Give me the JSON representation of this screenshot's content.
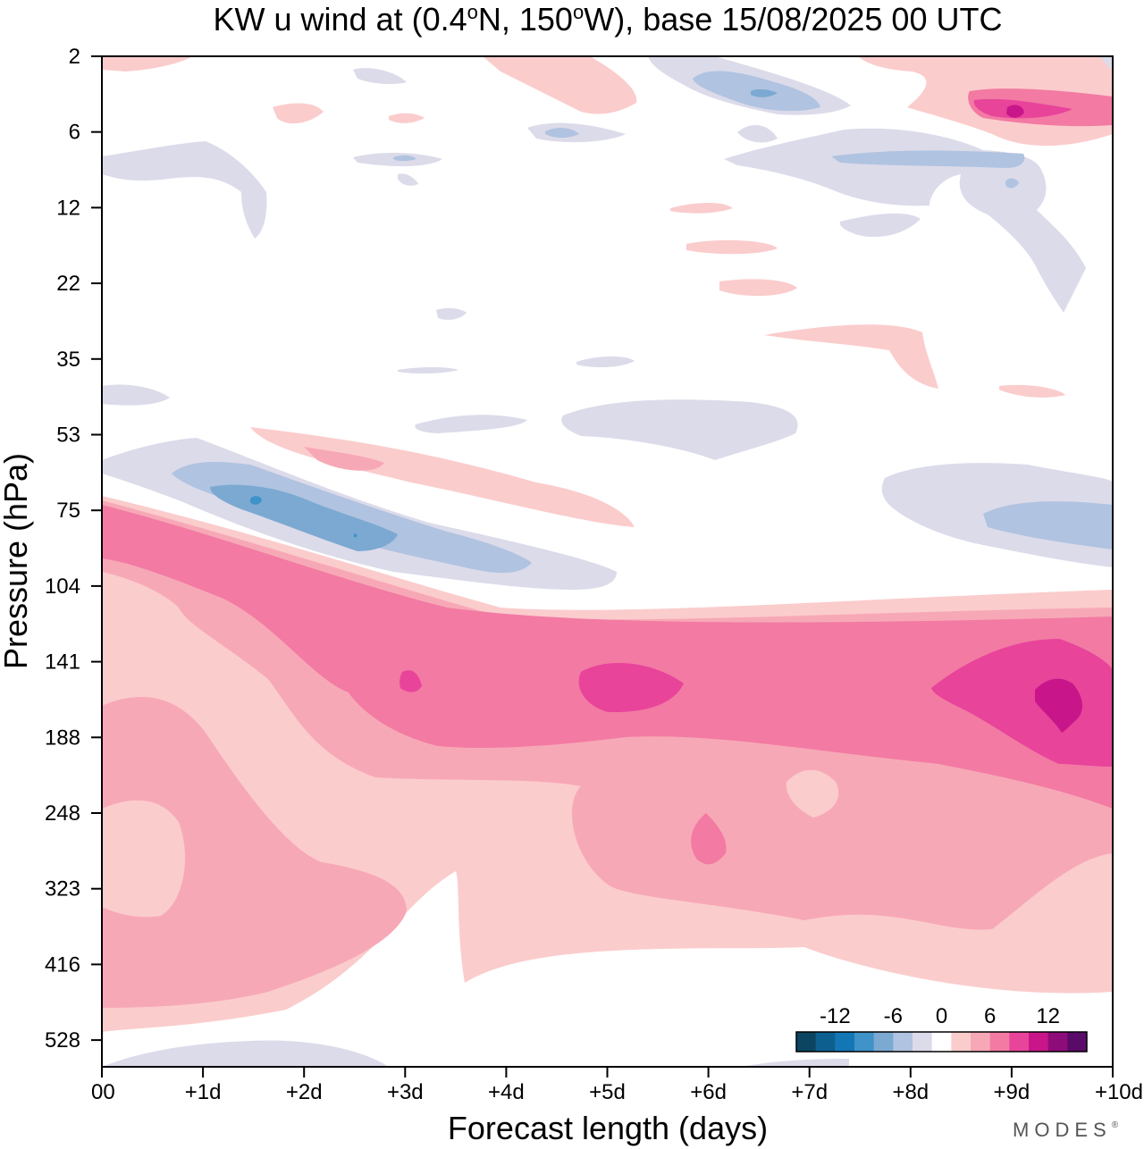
{
  "chart_data": {
    "type": "heatmap",
    "title": "KW u wind at (0.4°N, 150°W),  base 15/08/2025  00 UTC",
    "title_parts": {
      "a": "KW u wind at (0.4",
      "deg1": "o",
      "b": "N, 150",
      "deg2": "o",
      "c": "W),  base 15/08/2025  00 UTC"
    },
    "xlabel": "Forecast length (days)",
    "ylabel": "Pressure (hPa)",
    "x_ticks": [
      "00",
      "+1d",
      "+2d",
      "+3d",
      "+4d",
      "+5d",
      "+6d",
      "+7d",
      "+8d",
      "+9d",
      "+10d"
    ],
    "xlim": [
      0,
      10
    ],
    "y_ticks": [
      "2",
      "6",
      "12",
      "22",
      "35",
      "53",
      "75",
      "104",
      "141",
      "188",
      "248",
      "323",
      "416",
      "528"
    ],
    "y_scale": "log-pressure (top = 2 hPa, bottom ~ 640 hPa)",
    "colorbar": {
      "labels": [
        "-12",
        "-6",
        "0",
        "6",
        "12"
      ],
      "levels": [
        -16,
        -14,
        -12,
        -10,
        -8,
        -6,
        -4,
        -2,
        2,
        4,
        6,
        8,
        10,
        12,
        14,
        16
      ],
      "colors": [
        "#0b4562",
        "#0d5f8f",
        "#1477b5",
        "#3f93c8",
        "#7ba9d1",
        "#b0c3e0",
        "#dcdbea",
        "#ffffff",
        "#fbcccc",
        "#f7a8b6",
        "#f27aa3",
        "#e8449a",
        "#c8168a",
        "#8e0c7a",
        "#5a0b6a"
      ]
    },
    "features": [
      {
        "name": "tropopause westerly jet",
        "level_hPa": [
          95,
          230
        ],
        "days": [
          0,
          10
        ],
        "value": 10,
        "max_value": 15,
        "max_at_day": 9.5,
        "max_at_hPa": 160
      },
      {
        "name": "upper troposphere westerlies",
        "level_hPa": [
          230,
          500
        ],
        "days": [
          0,
          10
        ],
        "value": 6
      },
      {
        "name": "easterly jet below 53 hPa",
        "level_hPa": [
          58,
          95
        ],
        "days": [
          0.5,
          5
        ],
        "value": -8,
        "min_value": -10
      },
      {
        "name": "stratosphere westerly core",
        "level_hPa": [
          3,
          5
        ],
        "days": [
          8.5,
          10
        ],
        "value": 10,
        "max_value": 14
      },
      {
        "name": "stratosphere easterly core",
        "level_hPa": [
          3,
          4
        ],
        "days": [
          6,
          7
        ],
        "value": -6
      }
    ]
  },
  "branding": {
    "text": "MODES",
    "mark": "®"
  }
}
